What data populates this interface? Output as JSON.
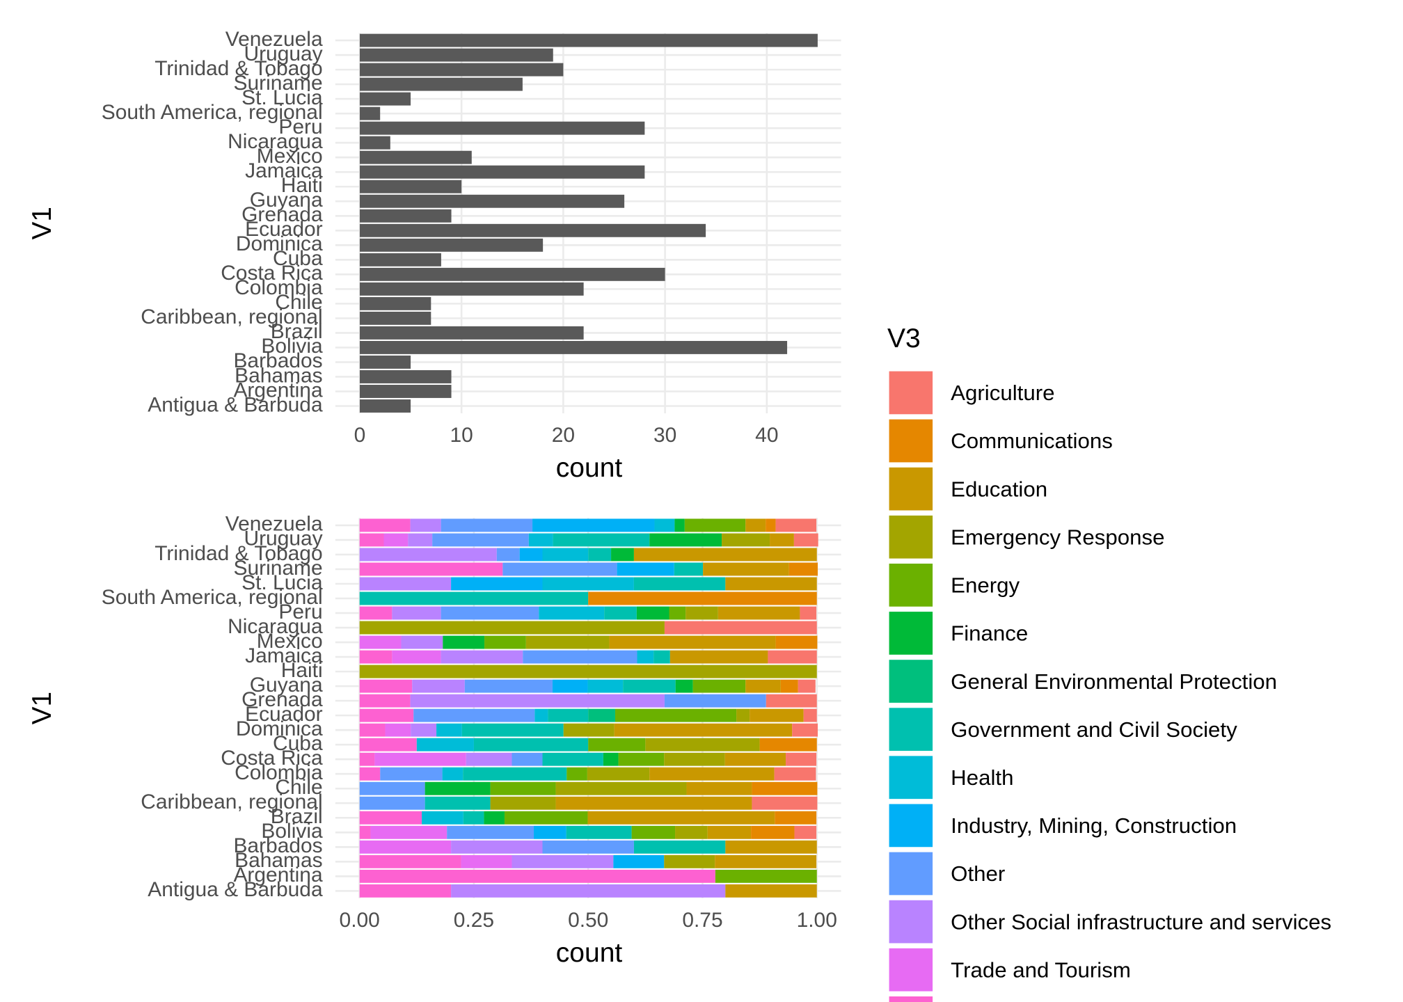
{
  "chart_data": [
    {
      "type": "bar",
      "orientation": "horizontal",
      "x_label": "count",
      "y_label": "V1",
      "color": "#595959",
      "grid": true,
      "categories": [
        "Antigua & Barbuda",
        "Argentina",
        "Bahamas",
        "Barbados",
        "Bolivia",
        "Brazil",
        "Caribbean, regional",
        "Chile",
        "Colombia",
        "Costa Rica",
        "Cuba",
        "Dominica",
        "Ecuador",
        "Grenada",
        "Guyana",
        "Haiti",
        "Jamaica",
        "Mexico",
        "Nicaragua",
        "Peru",
        "South America, regional",
        "St. Lucia",
        "Suriname",
        "Trinidad & Tobago",
        "Uruguay",
        "Venezuela"
      ],
      "values": [
        5,
        9,
        9,
        5,
        42,
        22,
        7,
        7,
        22,
        30,
        8,
        18,
        34,
        9,
        26,
        10,
        28,
        11,
        3,
        28,
        2,
        5,
        16,
        20,
        19,
        45
      ],
      "xlim": [
        -2.4,
        47.3
      ],
      "xticks": [
        0,
        10,
        20,
        30,
        40
      ]
    },
    {
      "type": "stacked_bar",
      "orientation": "horizontal",
      "x_label": "count",
      "y_label": "V1",
      "legend_title": "V3",
      "legend": "right",
      "grid": true,
      "categories": [
        "Antigua & Barbuda",
        "Argentina",
        "Bahamas",
        "Barbados",
        "Bolivia",
        "Brazil",
        "Caribbean, regional",
        "Chile",
        "Colombia",
        "Costa Rica",
        "Cuba",
        "Dominica",
        "Ecuador",
        "Grenada",
        "Guyana",
        "Haiti",
        "Jamaica",
        "Mexico",
        "Nicaragua",
        "Peru",
        "South America, regional",
        "St. Lucia",
        "Suriname",
        "Trinidad & Tobago",
        "Uruguay",
        "Venezuela"
      ],
      "xlim": [
        -0.053,
        1.053
      ],
      "xticks": [
        {
          "value": 0,
          "label": "0.00"
        },
        {
          "value": 0.25,
          "label": "0.25"
        },
        {
          "value": 0.5,
          "label": "0.50"
        },
        {
          "value": 0.75,
          "label": "0.75"
        },
        {
          "value": 1,
          "label": "1.00"
        }
      ],
      "series": [
        {
          "name": "Agriculture",
          "color": "#F8766D",
          "values": [
            0,
            0,
            0,
            0,
            0.048,
            0,
            0.143,
            0,
            0.091,
            0.067,
            0,
            0.056,
            0.029,
            0.111,
            0.038,
            0,
            0.107,
            0,
            0.333,
            0.036,
            0,
            0,
            0,
            0,
            0.053,
            0.089
          ]
        },
        {
          "name": "Communications",
          "color": "#E58700",
          "values": [
            0,
            0,
            0,
            0,
            0.095,
            0.091,
            0,
            0.143,
            0,
            0,
            0.125,
            0,
            0,
            0,
            0.038,
            0,
            0,
            0.091,
            0,
            0,
            0.5,
            0,
            0.063,
            0,
            0,
            0.022
          ]
        },
        {
          "name": "Education",
          "color": "#C99800",
          "values": [
            0.2,
            0,
            0.222,
            0.2,
            0.095,
            0.409,
            0.429,
            0.143,
            0.273,
            0.133,
            0,
            0.389,
            0.118,
            0,
            0.077,
            0,
            0.214,
            0.364,
            0,
            0.179,
            0,
            0.2,
            0.188,
            0.4,
            0.053,
            0.044
          ]
        },
        {
          "name": "Emergency Response",
          "color": "#A3A500",
          "values": [
            0,
            0,
            0.111,
            0,
            0.071,
            0,
            0.143,
            0.286,
            0.136,
            0.133,
            0.25,
            0.111,
            0.029,
            0,
            0,
            1,
            0,
            0.182,
            0.667,
            0.071,
            0,
            0,
            0,
            0,
            0.105,
            0
          ]
        },
        {
          "name": "Energy",
          "color": "#6BB100",
          "values": [
            0,
            0.222,
            0,
            0,
            0.095,
            0.182,
            0,
            0.143,
            0.045,
            0.1,
            0.125,
            0,
            0.265,
            0,
            0.115,
            0,
            0,
            0.091,
            0,
            0.036,
            0,
            0,
            0,
            0,
            0,
            0.133
          ]
        },
        {
          "name": "Finance",
          "color": "#00BA38",
          "values": [
            0,
            0,
            0,
            0,
            0,
            0.045,
            0,
            0.143,
            0,
            0.033,
            0,
            0,
            0,
            0,
            0.038,
            0,
            0,
            0.091,
            0,
            0.071,
            0,
            0,
            0,
            0.05,
            0.158,
            0.022
          ]
        },
        {
          "name": "General Environmental Protection",
          "color": "#00BF7D",
          "values": [
            0,
            0,
            0,
            0,
            0,
            0,
            0,
            0,
            0,
            0,
            0,
            0,
            0.059,
            0,
            0,
            0,
            0,
            0,
            0,
            0,
            0,
            0,
            0,
            0,
            0,
            0
          ]
        },
        {
          "name": "Government and Civil Society",
          "color": "#00C0AF",
          "values": [
            0,
            0,
            0,
            0.2,
            0.143,
            0.045,
            0.143,
            0,
            0.227,
            0.133,
            0.25,
            0.222,
            0.088,
            0,
            0.115,
            0,
            0.036,
            0,
            0,
            0.071,
            0.5,
            0.2,
            0.063,
            0.05,
            0.211,
            0
          ]
        },
        {
          "name": "Health",
          "color": "#00BCD8",
          "values": [
            0,
            0,
            0,
            0,
            0,
            0.091,
            0,
            0,
            0.045,
            0,
            0.125,
            0.056,
            0.029,
            0,
            0.077,
            0,
            0.036,
            0,
            0,
            0.143,
            0,
            0.2,
            0,
            0.1,
            0.053,
            0.044
          ]
        },
        {
          "name": "Industry, Mining, Construction",
          "color": "#00B0F6",
          "values": [
            0,
            0,
            0.111,
            0,
            0.071,
            0,
            0,
            0,
            0,
            0,
            0,
            0,
            0,
            0,
            0.077,
            0,
            0,
            0,
            0,
            0,
            0,
            0.2,
            0.125,
            0.05,
            0,
            0.267
          ]
        },
        {
          "name": "Other",
          "color": "#619CFF",
          "values": [
            0,
            0,
            0,
            0.2,
            0.19,
            0,
            0.143,
            0.143,
            0.136,
            0.067,
            0,
            0,
            0.265,
            0.222,
            0.192,
            0,
            0.25,
            0,
            0,
            0.214,
            0,
            0,
            0.25,
            0.05,
            0.211,
            0.2
          ]
        },
        {
          "name": "Other Social infrastructure and services",
          "color": "#B983FF",
          "values": [
            0.6,
            0,
            0.222,
            0.2,
            0,
            0,
            0,
            0,
            0,
            0.1,
            0,
            0.056,
            0,
            0.556,
            0.115,
            0,
            0.179,
            0.091,
            0,
            0.107,
            0,
            0.2,
            0,
            0.3,
            0.053,
            0.067
          ]
        },
        {
          "name": "Trade and Tourism",
          "color": "#E76BF3",
          "values": [
            0,
            0,
            0.111,
            0.2,
            0.167,
            0,
            0,
            0,
            0,
            0.2,
            0,
            0.056,
            0,
            0,
            0,
            0,
            0.107,
            0.091,
            0,
            0,
            0,
            0,
            0,
            0,
            0.053,
            0
          ]
        },
        {
          "name": null,
          "color": "#FD61D1",
          "values": [
            0.2,
            0.778,
            0.222,
            0,
            0.024,
            0.136,
            0,
            0,
            0.045,
            0.033,
            0.125,
            0.056,
            0.118,
            0.111,
            0.115,
            0,
            0.071,
            0,
            0,
            0.071,
            0,
            0,
            0.313,
            0,
            0.053,
            0.111
          ]
        }
      ]
    }
  ]
}
